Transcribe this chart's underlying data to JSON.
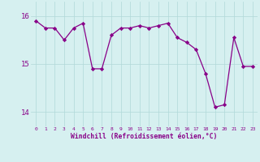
{
  "x": [
    0,
    1,
    2,
    3,
    4,
    5,
    6,
    7,
    8,
    9,
    10,
    11,
    12,
    13,
    14,
    15,
    16,
    17,
    18,
    19,
    20,
    21,
    22,
    23
  ],
  "y": [
    15.9,
    15.75,
    15.75,
    15.5,
    15.75,
    15.85,
    14.9,
    14.9,
    15.6,
    15.75,
    15.75,
    15.8,
    15.75,
    15.8,
    15.85,
    15.55,
    15.45,
    15.3,
    14.8,
    14.1,
    14.15,
    15.55,
    14.95,
    14.95
  ],
  "line_color": "#880088",
  "marker": "D",
  "marker_size": 2.2,
  "bg_color": "#d6f0f0",
  "grid_color": "#b0d8d8",
  "xlabel": "Windchill (Refroidissement éolien,°C)",
  "xlabel_color": "#880088",
  "tick_color": "#880088",
  "ylim": [
    13.7,
    16.3
  ],
  "yticks": [
    14,
    15,
    16
  ],
  "xticks": [
    0,
    1,
    2,
    3,
    4,
    5,
    6,
    7,
    8,
    9,
    10,
    11,
    12,
    13,
    14,
    15,
    16,
    17,
    18,
    19,
    20,
    21,
    22,
    23
  ]
}
